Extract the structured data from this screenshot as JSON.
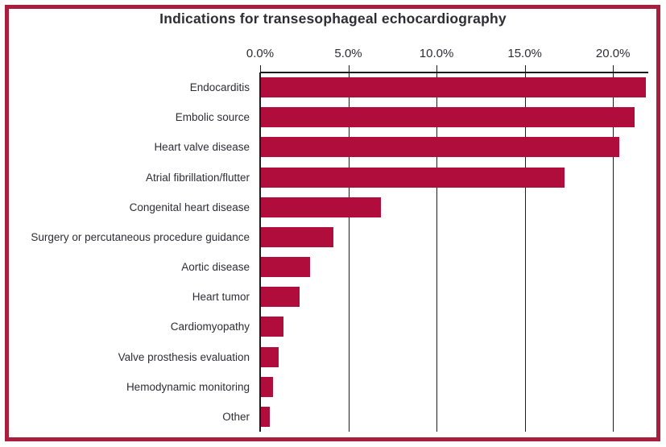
{
  "title": "Indications for transesophageal echocardiography",
  "colors": {
    "bar": "#B00D3D",
    "frame_border": "#A91E3C",
    "text": "#2E2D33",
    "gridline": "#1C1C1C",
    "background": "#FFFFFF"
  },
  "chart_data": {
    "type": "bar",
    "orientation": "horizontal",
    "title": "Indications for transesophageal echocardiography",
    "categories": [
      "Endocarditis",
      "Embolic source",
      "Heart valve disease",
      "Atrial fibrillation/flutter",
      "Congenital heart disease",
      "Surgery or percutaneous procedure guidance",
      "Aortic disease",
      "Heart tumor",
      "Cardiomyopathy",
      "Valve prosthesis evaluation",
      "Hemodynamic monitoring",
      "Other"
    ],
    "values": [
      21.8,
      21.2,
      20.3,
      17.2,
      6.8,
      4.1,
      2.8,
      2.2,
      1.3,
      1.0,
      0.7,
      0.5
    ],
    "unit": "%",
    "xlabel": "",
    "ylabel": "",
    "xlim": [
      0,
      22
    ],
    "x_ticks": [
      {
        "value": 0,
        "label": "0.0%"
      },
      {
        "value": 5,
        "label": "5.0%"
      },
      {
        "value": 10,
        "label": "10.0%"
      },
      {
        "value": 15,
        "label": "15.0%"
      },
      {
        "value": 20,
        "label": "20.0%"
      }
    ],
    "grid": true,
    "legend": false
  }
}
